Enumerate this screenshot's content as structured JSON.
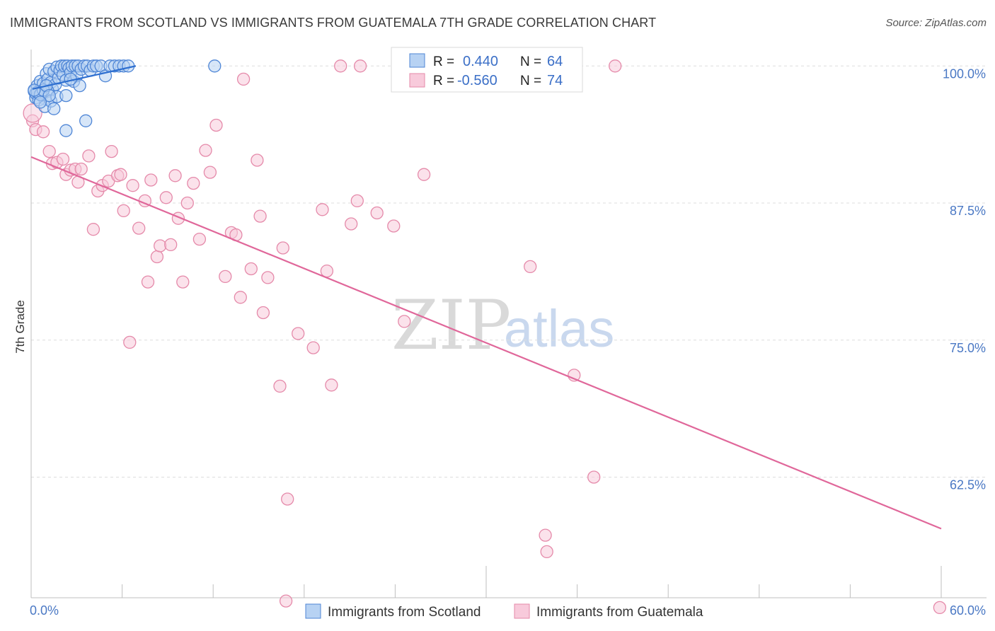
{
  "title": "IMMIGRANTS FROM SCOTLAND VS IMMIGRANTS FROM GUATEMALA 7TH GRADE CORRELATION CHART",
  "source": "Source: ZipAtlas.com",
  "watermark": {
    "zip": "ZIP",
    "atlas": "atlas"
  },
  "colors": {
    "scotland_fill": "#b7d2f3",
    "scotland_stroke": "#4f86d6",
    "scotland_line": "#2e6fd0",
    "guatemala_fill": "#f8cadb",
    "guatemala_stroke": "#e58aaa",
    "guatemala_line": "#e0679a",
    "tick_text": "#4a78c4",
    "grid": "#dddddd"
  },
  "legend": {
    "rows": [
      {
        "r_label": "R =",
        "r_value": "0.440",
        "n_label": "N =",
        "n_value": "64"
      },
      {
        "r_label": "R =",
        "r_value": "-0.560",
        "n_label": "N =",
        "n_value": "74"
      }
    ]
  },
  "chart_data": {
    "type": "scatter",
    "title": "IMMIGRANTS FROM SCOTLAND VS IMMIGRANTS FROM GUATEMALA 7TH GRADE CORRELATION CHART",
    "xlabel": "",
    "ylabel": "7th Grade",
    "xlim": [
      0,
      60
    ],
    "ylim": [
      51.5,
      101.5
    ],
    "x_tick_labels": [
      "0.0%",
      "60.0%"
    ],
    "y_ticks": [
      100.0,
      87.5,
      75.0,
      62.5
    ],
    "y_tick_labels": [
      "100.0%",
      "87.5%",
      "75.0%",
      "62.5%"
    ],
    "grid": true,
    "legend_position": "bottom-center",
    "series": [
      {
        "name": "Immigrants from Scotland",
        "trend": {
          "x": [
            0.1,
            6.9
          ],
          "y": [
            97.9,
            100.0
          ]
        },
        "points": [
          [
            0.2,
            97.7
          ],
          [
            0.3,
            97.1
          ],
          [
            0.4,
            98.2
          ],
          [
            0.5,
            97.6
          ],
          [
            0.6,
            98.6
          ],
          [
            0.7,
            97.3
          ],
          [
            0.8,
            98.4
          ],
          [
            0.9,
            97.0
          ],
          [
            1.0,
            99.3
          ],
          [
            1.1,
            98.8
          ],
          [
            1.2,
            99.7
          ],
          [
            1.3,
            98.5
          ],
          [
            1.4,
            97.9
          ],
          [
            1.5,
            99.5
          ],
          [
            1.6,
            98.3
          ],
          [
            1.7,
            99.9
          ],
          [
            1.8,
            98.9
          ],
          [
            1.9,
            99.6
          ],
          [
            2.0,
            100.0
          ],
          [
            2.1,
            99.2
          ],
          [
            2.2,
            100.0
          ],
          [
            2.3,
            98.7
          ],
          [
            2.4,
            100.0
          ],
          [
            2.5,
            99.8
          ],
          [
            2.6,
            99.4
          ],
          [
            2.7,
            100.0
          ],
          [
            2.8,
            98.6
          ],
          [
            2.9,
            100.0
          ],
          [
            3.0,
            99.1
          ],
          [
            3.1,
            100.0
          ],
          [
            3.2,
            98.2
          ],
          [
            3.3,
            99.7
          ],
          [
            3.5,
            100.0
          ],
          [
            3.7,
            100.0
          ],
          [
            3.9,
            99.6
          ],
          [
            4.1,
            100.0
          ],
          [
            4.3,
            100.0
          ],
          [
            4.6,
            100.0
          ],
          [
            4.9,
            99.1
          ],
          [
            5.2,
            100.0
          ],
          [
            5.5,
            100.0
          ],
          [
            5.8,
            100.0
          ],
          [
            6.1,
            100.0
          ],
          [
            6.4,
            100.0
          ],
          [
            0.3,
            97.5
          ],
          [
            0.5,
            96.9
          ],
          [
            0.7,
            97.6
          ],
          [
            0.9,
            96.3
          ],
          [
            1.1,
            97.7
          ],
          [
            1.3,
            96.8
          ],
          [
            1.5,
            96.1
          ],
          [
            1.7,
            97.2
          ],
          [
            2.3,
            97.3
          ],
          [
            0.4,
            97.6
          ],
          [
            0.6,
            97.4
          ],
          [
            0.8,
            97.8
          ],
          [
            1.0,
            98.2
          ],
          [
            1.2,
            97.3
          ],
          [
            2.6,
            98.8
          ],
          [
            3.6,
            95.0
          ],
          [
            2.3,
            94.1
          ],
          [
            12.1,
            100.0
          ],
          [
            0.2,
            97.8
          ],
          [
            0.6,
            96.7
          ]
        ]
      },
      {
        "name": "Immigrants from Guatemala",
        "trend": {
          "x": [
            0.0,
            60.0
          ],
          "y": [
            91.7,
            57.8
          ]
        },
        "points": [
          [
            0.1,
            95.0
          ],
          [
            0.3,
            94.2
          ],
          [
            0.8,
            94.0
          ],
          [
            1.2,
            92.2
          ],
          [
            1.4,
            91.1
          ],
          [
            1.7,
            91.2
          ],
          [
            2.1,
            91.5
          ],
          [
            2.3,
            90.1
          ],
          [
            2.6,
            90.5
          ],
          [
            2.9,
            90.6
          ],
          [
            3.1,
            89.4
          ],
          [
            3.3,
            90.6
          ],
          [
            3.8,
            91.8
          ],
          [
            4.1,
            85.1
          ],
          [
            4.4,
            88.6
          ],
          [
            4.7,
            89.1
          ],
          [
            5.1,
            89.5
          ],
          [
            5.3,
            92.2
          ],
          [
            5.7,
            90.0
          ],
          [
            5.9,
            90.1
          ],
          [
            6.1,
            86.8
          ],
          [
            6.7,
            89.1
          ],
          [
            7.1,
            85.2
          ],
          [
            7.5,
            87.7
          ],
          [
            7.7,
            80.3
          ],
          [
            7.9,
            89.6
          ],
          [
            8.3,
            82.6
          ],
          [
            8.5,
            83.6
          ],
          [
            8.9,
            88.0
          ],
          [
            9.2,
            83.7
          ],
          [
            9.5,
            90.0
          ],
          [
            9.7,
            86.1
          ],
          [
            10.0,
            80.3
          ],
          [
            10.3,
            87.5
          ],
          [
            10.7,
            89.3
          ],
          [
            11.1,
            84.2
          ],
          [
            11.5,
            92.3
          ],
          [
            11.8,
            90.3
          ],
          [
            12.2,
            94.6
          ],
          [
            12.8,
            80.8
          ],
          [
            13.2,
            84.8
          ],
          [
            13.5,
            84.6
          ],
          [
            13.8,
            78.9
          ],
          [
            14.0,
            98.8
          ],
          [
            14.5,
            81.5
          ],
          [
            14.9,
            91.4
          ],
          [
            15.1,
            86.3
          ],
          [
            15.3,
            77.5
          ],
          [
            15.6,
            80.7
          ],
          [
            16.4,
            70.8
          ],
          [
            16.6,
            83.4
          ],
          [
            16.9,
            60.5
          ],
          [
            17.6,
            75.6
          ],
          [
            18.6,
            74.3
          ],
          [
            19.2,
            86.9
          ],
          [
            19.5,
            81.3
          ],
          [
            19.8,
            70.9
          ],
          [
            20.4,
            100.0
          ],
          [
            21.1,
            85.6
          ],
          [
            21.5,
            87.7
          ],
          [
            21.7,
            100.0
          ],
          [
            22.8,
            86.6
          ],
          [
            23.9,
            85.4
          ],
          [
            24.6,
            76.7
          ],
          [
            25.9,
            90.1
          ],
          [
            32.9,
            81.7
          ],
          [
            33.9,
            57.2
          ],
          [
            34.0,
            55.7
          ],
          [
            35.8,
            71.8
          ],
          [
            37.1,
            62.5
          ],
          [
            38.5,
            100.0
          ],
          [
            16.8,
            51.2
          ],
          [
            59.9,
            50.6
          ],
          [
            6.5,
            74.8
          ]
        ]
      }
    ]
  },
  "bottom_legend": {
    "items": [
      "Immigrants from Scotland",
      "Immigrants from Guatemala"
    ]
  }
}
